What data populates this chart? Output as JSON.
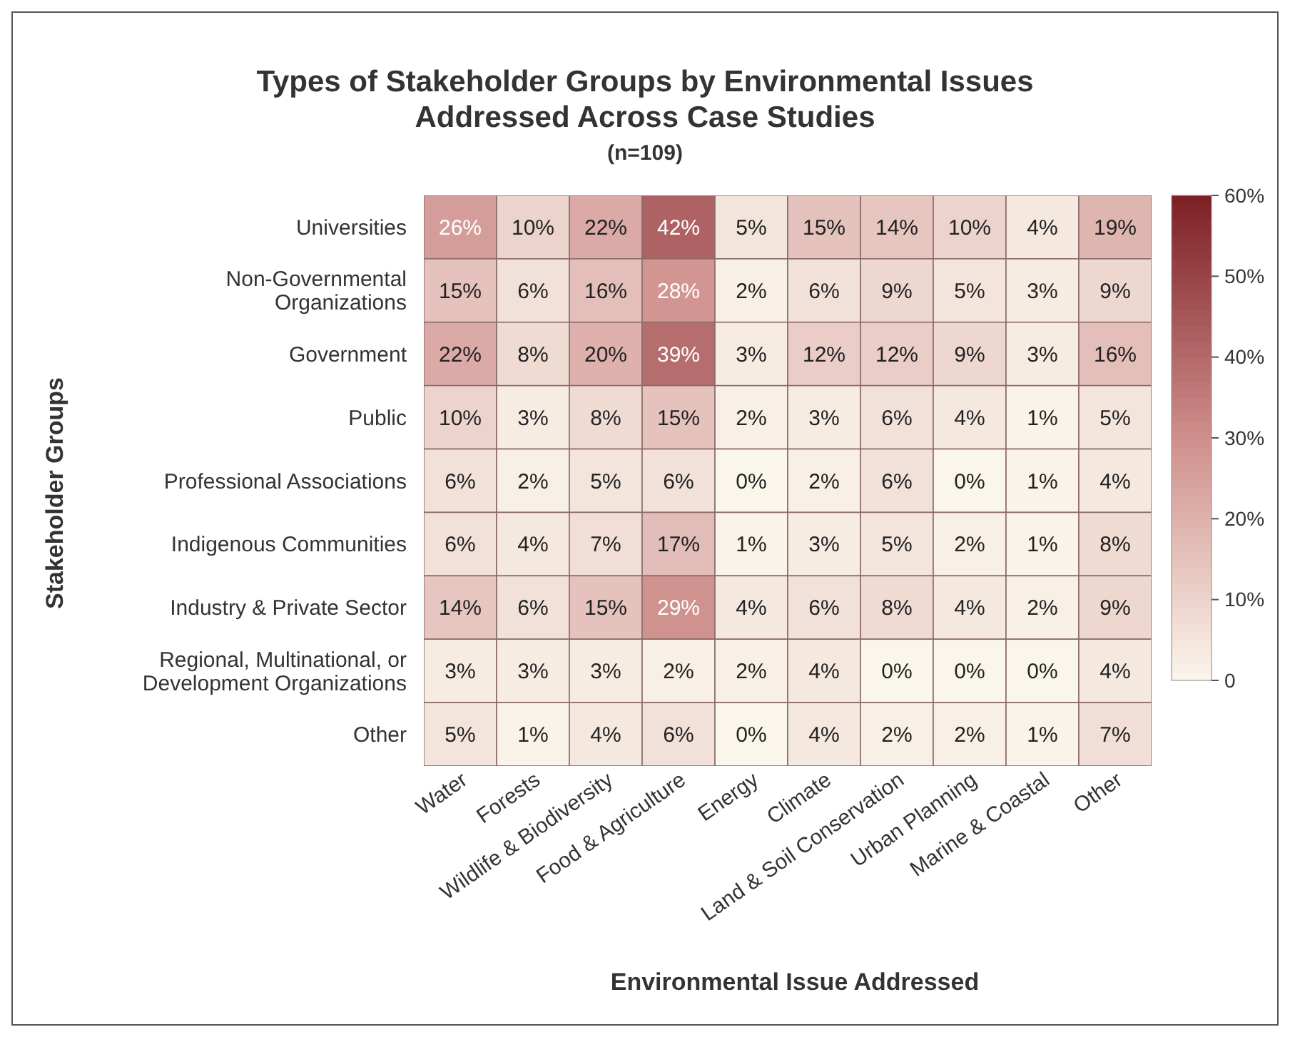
{
  "chart_data": {
    "type": "heatmap",
    "title": "Types of Stakeholder Groups by Environmental Issues Addressed Across Case Studies",
    "subtitle": "(n=109)",
    "xlabel": "Environmental Issue Addressed",
    "ylabel": "Stakeholder Groups",
    "categories": [
      "Water",
      "Forests",
      "Wildlife & Biodiversity",
      "Food & Agriculture",
      "Energy",
      "Climate",
      "Land & Soil Conservation",
      "Urban Planning",
      "Marine & Coastal",
      "Other"
    ],
    "y_categories": [
      "Universities",
      "Non-Governmental Organizations",
      "Government",
      "Public",
      "Professional Associations",
      "Indigenous Communities",
      "Industry & Private Sector",
      "Regional, Multinational, or Development Organizations",
      "Other"
    ],
    "cells": [
      [
        26,
        10,
        22,
        42,
        5,
        15,
        14,
        10,
        4,
        19
      ],
      [
        15,
        6,
        16,
        28,
        2,
        6,
        9,
        5,
        3,
        9
      ],
      [
        22,
        8,
        20,
        39,
        3,
        12,
        12,
        9,
        3,
        16
      ],
      [
        10,
        3,
        8,
        15,
        2,
        3,
        6,
        4,
        1,
        5
      ],
      [
        6,
        2,
        5,
        6,
        0,
        2,
        6,
        0,
        1,
        4
      ],
      [
        6,
        4,
        7,
        17,
        1,
        3,
        5,
        2,
        1,
        8
      ],
      [
        14,
        6,
        15,
        29,
        4,
        6,
        8,
        4,
        2,
        9
      ],
      [
        3,
        3,
        3,
        2,
        2,
        4,
        0,
        0,
        0,
        4
      ],
      [
        5,
        1,
        4,
        6,
        0,
        4,
        2,
        2,
        1,
        7
      ]
    ],
    "cell_labels": [
      [
        "26%",
        "10%",
        "22%",
        "42%",
        "5%",
        "15%",
        "14%",
        "10%",
        "4%",
        "19%"
      ],
      [
        "15%",
        "6%",
        "16%",
        "28%",
        "2%",
        "6%",
        "9%",
        "5%",
        "3%",
        "9%"
      ],
      [
        "22%",
        "8%",
        "20%",
        "39%",
        "3%",
        "12%",
        "12%",
        "9%",
        "3%",
        "16%"
      ],
      [
        "10%",
        "3%",
        "8%",
        "15%",
        "2%",
        "3%",
        "6%",
        "4%",
        "1%",
        "5%"
      ],
      [
        "6%",
        "2%",
        "5%",
        "6%",
        "0%",
        "2%",
        "6%",
        "0%",
        "1%",
        "4%"
      ],
      [
        "6%",
        "4%",
        "7%",
        "17%",
        "1%",
        "3%",
        "5%",
        "2%",
        "1%",
        "8%"
      ],
      [
        "14%",
        "6%",
        "15%",
        "29%",
        "4%",
        "6%",
        "8%",
        "4%",
        "2%",
        "9%"
      ],
      [
        "3%",
        "3%",
        "3%",
        "2%",
        "2%",
        "4%",
        "0%",
        "0%",
        "0%",
        "4%"
      ],
      [
        "5%",
        "1%",
        "4%",
        "6%",
        "0%",
        "4%",
        "2%",
        "2%",
        "1%",
        "7%"
      ]
    ],
    "clim": [
      0,
      60
    ],
    "cticks": [
      0,
      {
        "value": 10,
        "label": "10%"
      },
      {
        "value": 20,
        "label": "20%"
      },
      {
        "value": 30,
        "label": "30%"
      },
      {
        "value": 40,
        "label": "40%"
      },
      {
        "value": 50,
        "label": "50%"
      },
      {
        "value": 60,
        "label": "60%"
      }
    ]
  }
}
